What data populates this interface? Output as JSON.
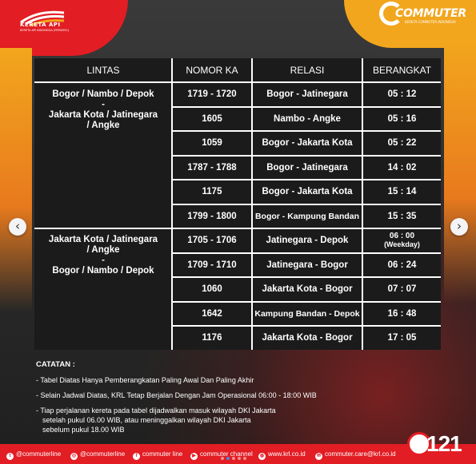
{
  "brand": {
    "kai_name": "KERETA API",
    "kai_tagline": "KERETA API INDONESIA (PERSERO)",
    "commuter_name": "COMMUTER",
    "commuter_tagline": "KERETA COMMUTER INDONESIA"
  },
  "table": {
    "headers": [
      "LINTAS",
      "NOMOR KA",
      "RELASI",
      "BERANGKAT"
    ],
    "groups": [
      {
        "line1": "Bogor / Nambo / Depok",
        "line2": "-",
        "line3": "Jakarta Kota / Jatinegara",
        "line4": "/ Angke"
      },
      {
        "line1": "Jakarta Kota / Jatinegara",
        "line2": "/ Angke",
        "line3": "-",
        "line4": "Bogor / Nambo / Depok"
      }
    ],
    "rows": [
      {
        "nomor": "1719 - 1720",
        "relasi": "Bogor - Jatinegara",
        "berangkat": "05 : 12"
      },
      {
        "nomor": "1605",
        "relasi": "Nambo - Angke",
        "berangkat": "05 : 16"
      },
      {
        "nomor": "1059",
        "relasi": "Bogor - Jakarta Kota",
        "berangkat": "05 : 22"
      },
      {
        "nomor": "1787 - 1788",
        "relasi": "Bogor - Jatinegara",
        "berangkat": "14 : 02"
      },
      {
        "nomor": "1175",
        "relasi": "Bogor - Jakarta Kota",
        "berangkat": "15 : 14"
      },
      {
        "nomor": "1799 - 1800",
        "relasi": "Bogor - Kampung Bandan",
        "berangkat": "15 : 35"
      },
      {
        "nomor": "1705 - 1706",
        "relasi": "Jatinegara - Depok",
        "berangkat": "06 : 00",
        "berangkat_note": "(Weekday)"
      },
      {
        "nomor": "1709 - 1710",
        "relasi": "Jatinegara - Bogor",
        "berangkat": "06 : 24"
      },
      {
        "nomor": "1060",
        "relasi": "Jakarta Kota - Bogor",
        "berangkat": "07 : 07"
      },
      {
        "nomor": "1642",
        "relasi": "Kampung Bandan - Depok",
        "berangkat": "16 : 48"
      },
      {
        "nomor": "1176",
        "relasi": "Jakarta Kota - Bogor",
        "berangkat": "17 : 05"
      }
    ]
  },
  "notes": {
    "title": "CATATAN :",
    "items": [
      "- Tabel Diatas Hanya Pemberangkatan Paling Awal Dan Paling Akhir",
      "- Selain Jadwal Diatas, KRL Tetap Berjalan Dengan Jam Operasional 06:00 - 18:00 WIB",
      "- Tiap perjalanan kereta pada tabel dijadwalkan masuk wilayah DKI Jakarta"
    ],
    "item3_line2": "setelah pukul 06.00 WIB, atau meninggalkan wilayah DKI Jakarta",
    "item3_line3": "sebelum pukul 18.00 WIB"
  },
  "footer": {
    "twitter": "@commuterline",
    "instagram": "@commuterline",
    "facebook": "commuter line",
    "youtube": "commuter channel",
    "website": "www.krl.co.id",
    "email": "commuter.care@krl.co.id",
    "hotline": "121"
  },
  "nav": {
    "prev": "‹",
    "next": "›"
  },
  "colors": {
    "red": "#e21d24",
    "orange": "#f2a61d",
    "table_bg": "#1b1b1b"
  }
}
